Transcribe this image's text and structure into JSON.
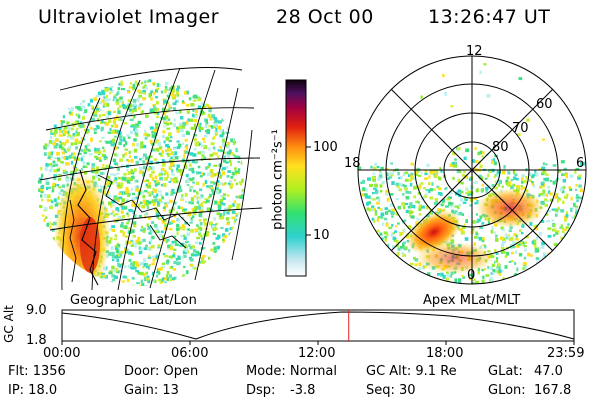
{
  "header": {
    "title": "Ultraviolet Imager",
    "date": "28 Oct 00",
    "time": "13:26:47 UT"
  },
  "colorbar": {
    "unit_label": "photon cm⁻²s⁻¹",
    "ticks": [
      "100",
      "10"
    ]
  },
  "left_panel": {
    "caption": "Geographic Lat/Lon"
  },
  "right_panel": {
    "caption": "Apex MLat/MLT",
    "mlt_labels": [
      "12",
      "18",
      "6",
      "0"
    ],
    "lat_labels": [
      "60",
      "70",
      "80"
    ]
  },
  "altitude_plot": {
    "ylabel": "GC Alt",
    "yticks": [
      "9.0",
      "1.8"
    ],
    "xticks": [
      "00:00",
      "06:00",
      "12:00",
      "18:00",
      "23:59"
    ],
    "current_time_fraction": 0.56
  },
  "info": {
    "flt": "Flt: 1356",
    "ip": "IP: 18.0",
    "door": "Door: Open",
    "gain": "Gain: 13",
    "mode": "Mode: Normal",
    "dsp": "Dsp:",
    "dsp_val": "-3.8",
    "gc_alt": "GC Alt: 9.1 Re",
    "seq": "Seq: 30",
    "glat": "GLat:",
    "glat_val": "47.0",
    "glon": "GLon:",
    "glon_val": "167.8"
  }
}
